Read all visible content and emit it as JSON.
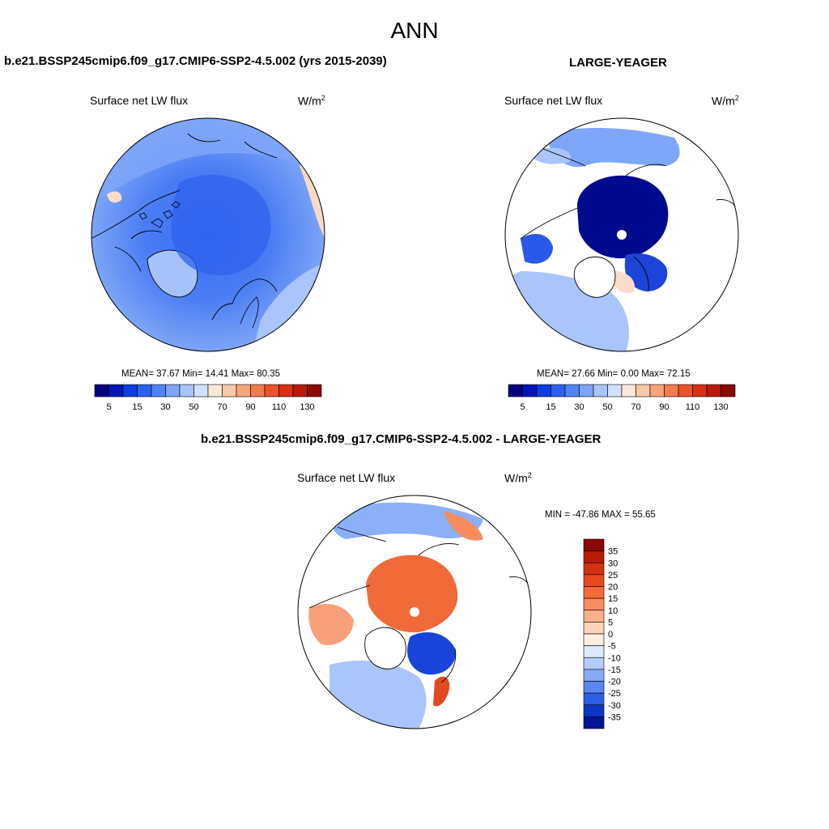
{
  "page": {
    "title": "ANN"
  },
  "panels": [
    {
      "header": "b.e21.BSSP245cmip6.f09_g17.CMIP6-SSP2-4.5.002 (yrs 2015-2039)",
      "variable": "Surface net LW flux",
      "units": "W/m",
      "units_sup": "2",
      "stats": {
        "mean_label": "MEAN=",
        "mean": "37.67",
        "min_label": "Min=",
        "min": "14.41",
        "max_label": "Max=",
        "max": "80.35"
      }
    },
    {
      "header": "LARGE-YEAGER",
      "variable": "Surface net LW flux",
      "units": "W/m",
      "units_sup": "2",
      "stats": {
        "mean_label": "MEAN=",
        "mean": "27.66",
        "min_label": "Min=",
        "min": "0.00",
        "max_label": "Max=",
        "max": "72.15"
      }
    },
    {
      "header": "b.e21.BSSP245cmip6.f09_g17.CMIP6-SSP2-4.5.002 - LARGE-YEAGER",
      "variable": "Surface net LW flux",
      "units": "W/m",
      "units_sup": "2",
      "minmax": "MIN = -47.86 MAX =  55.65"
    }
  ],
  "chart_data": [
    {
      "type": "heatmap",
      "projection": "north-polar-stereographic",
      "title": "b.e21.BSSP245cmip6.f09_g17.CMIP6-SSP2-4.5.002 (yrs 2015-2039)",
      "field": "Surface net LW flux",
      "units": "W/m2",
      "stats": {
        "mean": 37.67,
        "min": 14.41,
        "max": 80.35
      },
      "colorbar": {
        "orientation": "horizontal",
        "tick_labels": [
          "5",
          "15",
          "30",
          "50",
          "70",
          "90",
          "110",
          "130"
        ],
        "colors": [
          "#000080",
          "#0016b8",
          "#0a3ee0",
          "#2a62f0",
          "#4e84f8",
          "#7ca4fa",
          "#a8c4fc",
          "#d2e2fe",
          "#fde8d6",
          "#fcc8a6",
          "#faa47a",
          "#f57a4e",
          "#ec5228",
          "#d83010",
          "#b81a06",
          "#8a0a02"
        ]
      }
    },
    {
      "type": "heatmap",
      "projection": "north-polar-stereographic",
      "title": "LARGE-YEAGER",
      "field": "Surface net LW flux",
      "units": "W/m2",
      "stats": {
        "mean": 27.66,
        "min": 0.0,
        "max": 72.15
      },
      "colorbar": {
        "orientation": "horizontal",
        "tick_labels": [
          "5",
          "15",
          "30",
          "50",
          "70",
          "90",
          "110",
          "130"
        ],
        "colors": [
          "#000080",
          "#0016b8",
          "#0a3ee0",
          "#2a62f0",
          "#4e84f8",
          "#7ca4fa",
          "#a8c4fc",
          "#d2e2fe",
          "#fde8d6",
          "#fcc8a6",
          "#faa47a",
          "#f57a4e",
          "#ec5228",
          "#d83010",
          "#b81a06",
          "#8a0a02"
        ]
      }
    },
    {
      "type": "heatmap",
      "projection": "north-polar-stereographic",
      "title": "b.e21.BSSP245cmip6.f09_g17.CMIP6-SSP2-4.5.002 - LARGE-YEAGER",
      "field": "Surface net LW flux",
      "units": "W/m2",
      "stats": {
        "min": -47.86,
        "max": 55.65
      },
      "colorbar": {
        "orientation": "vertical",
        "tick_labels": [
          "35",
          "30",
          "25",
          "20",
          "15",
          "10",
          "5",
          "0",
          "-5",
          "-10",
          "-15",
          "-20",
          "-25",
          "-30",
          "-35"
        ],
        "colors": [
          "#8a0a02",
          "#b41c06",
          "#d23210",
          "#e84a1e",
          "#f46a3a",
          "#f88c5e",
          "#fab08a",
          "#fcd2b8",
          "#fdeee2",
          "#dce8fc",
          "#b4ccfa",
          "#86aaf6",
          "#5a86f0",
          "#2e5ee4",
          "#0c36c4",
          "#00149a"
        ]
      }
    }
  ]
}
